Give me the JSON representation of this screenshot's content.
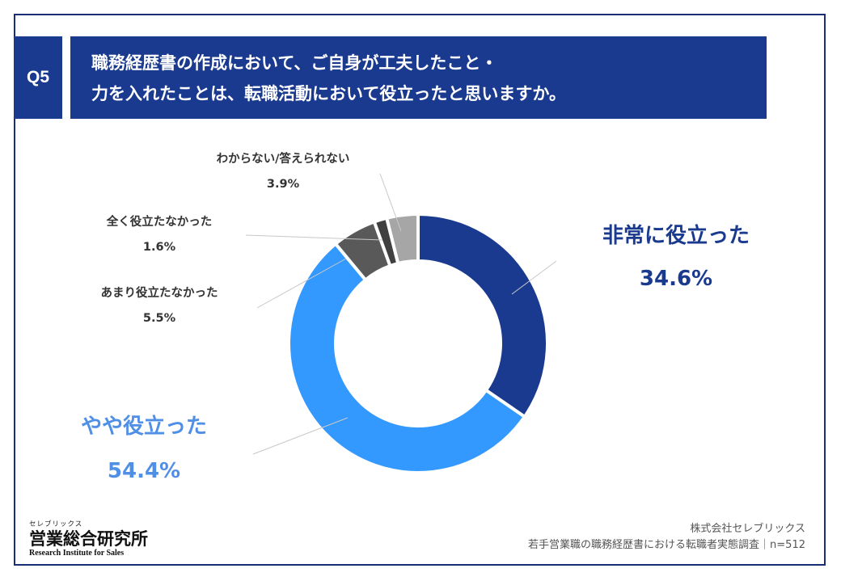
{
  "question": {
    "number": "Q5",
    "line1": "職務経歴書の作成において、ご自身が工夫したこと・",
    "line2": "力を入れたことは、転職活動において役立ったと思いますか。"
  },
  "chart_data": {
    "type": "pie",
    "donut": true,
    "unit": "%",
    "legend": "none",
    "slices": [
      {
        "label": "非常に役立った",
        "value": 34.6,
        "value_label": "34.6%",
        "color": "#1a3a8f",
        "label_color": "#1a3a8f"
      },
      {
        "label": "やや役立った",
        "value": 54.4,
        "value_label": "54.4%",
        "color": "#3399ff",
        "label_color": "#4f8fe6"
      },
      {
        "label": "あまり役立たなかった",
        "value": 5.5,
        "value_label": "5.5%",
        "color": "#595959",
        "label_color": "#333333"
      },
      {
        "label": "全く役立たなかった",
        "value": 1.6,
        "value_label": "1.6%",
        "color": "#404040",
        "label_color": "#333333"
      },
      {
        "label": "わからない/答えられない",
        "value": 3.9,
        "value_label": "3.9%",
        "color": "#a6a6a6",
        "label_color": "#333333"
      }
    ]
  },
  "logo": {
    "kana": "セレブリックス",
    "title": "営業総合研究所",
    "subtitle": "Research Institute for Sales"
  },
  "source": {
    "company": "株式会社セレブリックス",
    "survey": "若手営業職の職務経歴書における転職者実態調査｜n=512"
  }
}
